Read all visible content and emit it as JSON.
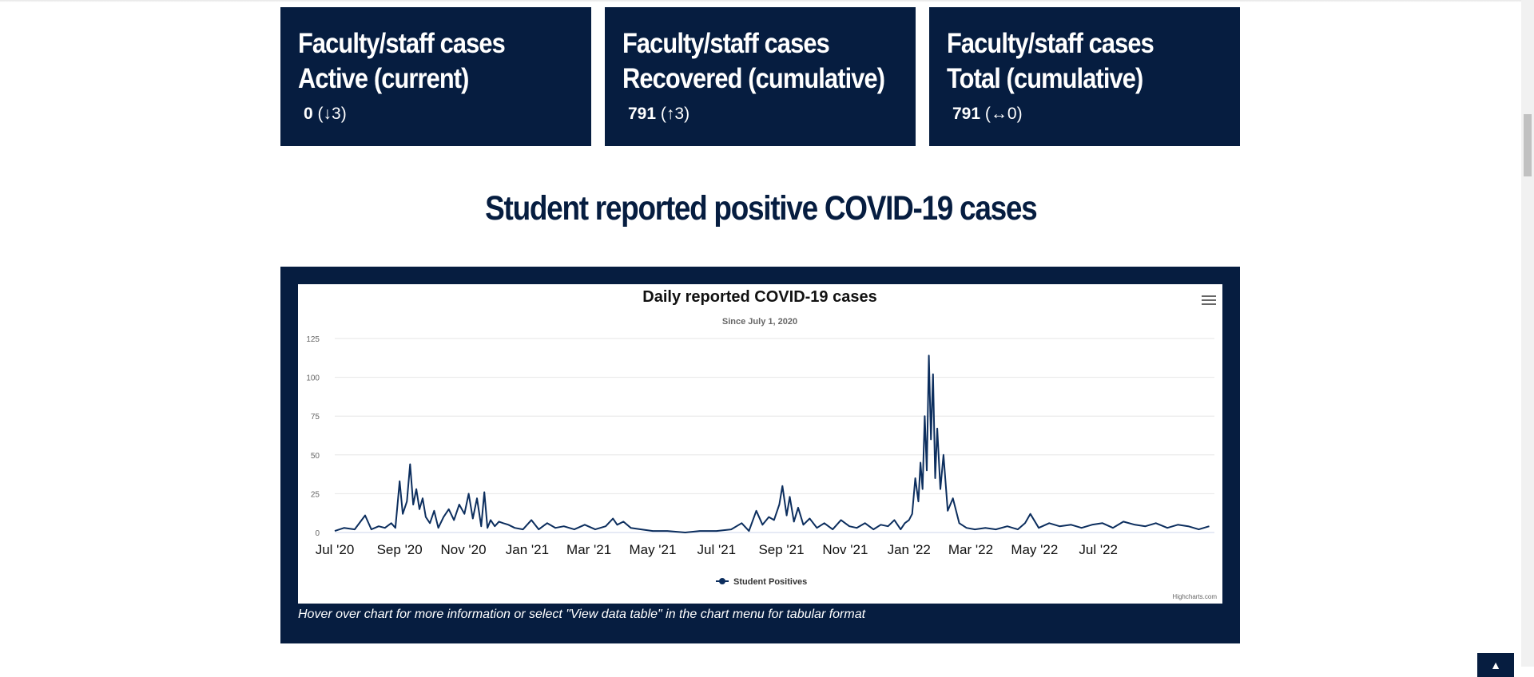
{
  "cards": [
    {
      "title_line1": "Faculty/staff cases",
      "title_line2": "Active (current)",
      "value": "0",
      "change": "(↓3)"
    },
    {
      "title_line1": "Faculty/staff cases",
      "title_line2": "Recovered (cumulative)",
      "value": "791",
      "change": "(↑3)"
    },
    {
      "title_line1": "Faculty/staff cases",
      "title_line2": "Total (cumulative)",
      "value": "791",
      "change": "(↔0)"
    }
  ],
  "section_heading": "Student reported positive COVID-19 cases",
  "chart_caption": "Hover over chart for more information or select \"View data table\" in the chart menu for tabular format",
  "colors": {
    "navy": "#061d40",
    "series": "#0c2e5e",
    "grid": "#e6e6e6"
  },
  "icons": {
    "menu": "hamburger-menu-icon",
    "back_to_top": "chevron-up-icon"
  },
  "chart_data": {
    "type": "line",
    "title": "Daily reported COVID-19 cases",
    "subtitle": "Since July 1, 2020",
    "credits": "Highcharts.com",
    "xlabel": "",
    "ylabel": "",
    "ylim": [
      0,
      125
    ],
    "yticks": [
      0,
      25,
      50,
      75,
      100,
      125
    ],
    "xlim": [
      "2020-07-01",
      "2022-10-20"
    ],
    "xtick_labels": [
      "Jul '20",
      "Sep '20",
      "Nov '20",
      "Jan '21",
      "Mar '21",
      "May '21",
      "Jul '21",
      "Sep '21",
      "Nov '21",
      "Jan '22",
      "Mar '22",
      "May '22",
      "Jul '22"
    ],
    "xtick_dates": [
      "2020-07-01",
      "2020-09-01",
      "2020-11-01",
      "2021-01-01",
      "2021-03-01",
      "2021-05-01",
      "2021-07-01",
      "2021-09-01",
      "2021-11-01",
      "2022-01-01",
      "2022-03-01",
      "2022-05-01",
      "2022-07-01"
    ],
    "grid": true,
    "legend": "bottom-center",
    "series": [
      {
        "name": "Student Positives",
        "x": [
          "2020-07-01",
          "2020-07-10",
          "2020-07-20",
          "2020-07-30",
          "2020-08-05",
          "2020-08-12",
          "2020-08-18",
          "2020-08-24",
          "2020-08-28",
          "2020-09-01",
          "2020-09-04",
          "2020-09-08",
          "2020-09-11",
          "2020-09-14",
          "2020-09-17",
          "2020-09-20",
          "2020-09-23",
          "2020-09-26",
          "2020-09-30",
          "2020-10-04",
          "2020-10-08",
          "2020-10-13",
          "2020-10-18",
          "2020-10-23",
          "2020-10-28",
          "2020-11-02",
          "2020-11-06",
          "2020-11-10",
          "2020-11-14",
          "2020-11-18",
          "2020-11-21",
          "2020-11-24",
          "2020-11-27",
          "2020-12-01",
          "2020-12-05",
          "2020-12-09",
          "2020-12-14",
          "2020-12-20",
          "2020-12-28",
          "2021-01-05",
          "2021-01-12",
          "2021-01-20",
          "2021-01-28",
          "2021-02-05",
          "2021-02-15",
          "2021-02-25",
          "2021-03-07",
          "2021-03-17",
          "2021-03-24",
          "2021-03-28",
          "2021-04-03",
          "2021-04-10",
          "2021-04-20",
          "2021-05-01",
          "2021-05-15",
          "2021-06-01",
          "2021-06-15",
          "2021-07-01",
          "2021-07-15",
          "2021-07-25",
          "2021-08-01",
          "2021-08-08",
          "2021-08-14",
          "2021-08-20",
          "2021-08-25",
          "2021-08-30",
          "2021-09-02",
          "2021-09-06",
          "2021-09-09",
          "2021-09-13",
          "2021-09-17",
          "2021-09-22",
          "2021-09-28",
          "2021-10-05",
          "2021-10-12",
          "2021-10-20",
          "2021-10-28",
          "2021-11-05",
          "2021-11-12",
          "2021-11-20",
          "2021-11-28",
          "2021-12-05",
          "2021-12-12",
          "2021-12-18",
          "2021-12-24",
          "2021-12-28",
          "2022-01-01",
          "2022-01-04",
          "2022-01-07",
          "2022-01-10",
          "2022-01-12",
          "2022-01-14",
          "2022-01-16",
          "2022-01-18",
          "2022-01-20",
          "2022-01-22",
          "2022-01-24",
          "2022-01-26",
          "2022-01-28",
          "2022-01-31",
          "2022-02-03",
          "2022-02-07",
          "2022-02-12",
          "2022-02-18",
          "2022-02-25",
          "2022-03-05",
          "2022-03-15",
          "2022-03-25",
          "2022-04-05",
          "2022-04-15",
          "2022-04-22",
          "2022-04-27",
          "2022-05-05",
          "2022-05-15",
          "2022-05-25",
          "2022-06-05",
          "2022-06-15",
          "2022-06-25",
          "2022-07-05",
          "2022-07-15",
          "2022-07-25",
          "2022-08-05",
          "2022-08-15",
          "2022-08-25",
          "2022-09-05",
          "2022-09-15",
          "2022-09-25",
          "2022-10-05",
          "2022-10-15"
        ],
        "y": [
          1,
          3,
          2,
          11,
          2,
          4,
          3,
          6,
          3,
          33,
          12,
          20,
          44,
          18,
          28,
          15,
          22,
          10,
          6,
          14,
          3,
          10,
          15,
          8,
          18,
          12,
          25,
          9,
          22,
          4,
          26,
          3,
          8,
          4,
          7,
          6,
          5,
          3,
          2,
          8,
          2,
          6,
          3,
          4,
          2,
          5,
          2,
          4,
          9,
          5,
          7,
          3,
          2,
          1,
          1,
          0,
          1,
          1,
          2,
          6,
          1,
          14,
          5,
          10,
          8,
          18,
          30,
          11,
          23,
          7,
          16,
          5,
          9,
          3,
          6,
          2,
          8,
          4,
          3,
          6,
          2,
          5,
          4,
          8,
          2,
          6,
          8,
          12,
          35,
          20,
          45,
          28,
          75,
          40,
          114,
          60,
          102,
          35,
          67,
          28,
          50,
          14,
          22,
          6,
          3,
          2,
          3,
          2,
          4,
          2,
          6,
          12,
          3,
          6,
          4,
          5,
          3,
          5,
          6,
          3,
          7,
          5,
          4,
          6,
          3,
          5,
          4,
          2,
          4
        ]
      }
    ]
  }
}
